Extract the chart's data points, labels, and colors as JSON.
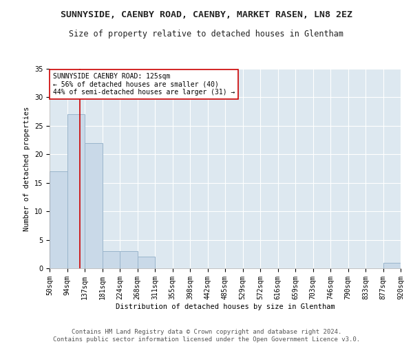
{
  "title": "SUNNYSIDE, CAENBY ROAD, CAENBY, MARKET RASEN, LN8 2EZ",
  "subtitle": "Size of property relative to detached houses in Glentham",
  "xlabel": "Distribution of detached houses by size in Glentham",
  "ylabel": "Number of detached properties",
  "bin_edges": [
    50,
    94,
    137,
    181,
    224,
    268,
    311,
    355,
    398,
    442,
    485,
    529,
    572,
    616,
    659,
    703,
    746,
    790,
    833,
    877,
    920
  ],
  "bar_heights": [
    17,
    27,
    22,
    3,
    3,
    2,
    0,
    0,
    0,
    0,
    0,
    0,
    0,
    0,
    0,
    0,
    0,
    0,
    0,
    1
  ],
  "bar_color": "#c9d9e8",
  "bar_edge_color": "#9ab5cc",
  "red_line_x": 125,
  "red_line_color": "#cc0000",
  "annotation_text": "SUNNYSIDE CAENBY ROAD: 125sqm\n← 56% of detached houses are smaller (40)\n44% of semi-detached houses are larger (31) →",
  "annotation_box_color": "#ffffff",
  "annotation_box_edge": "#cc0000",
  "ylim": [
    0,
    35
  ],
  "yticks": [
    0,
    5,
    10,
    15,
    20,
    25,
    30,
    35
  ],
  "background_color": "#dde8f0",
  "fig_background_color": "#ffffff",
  "grid_color": "#ffffff",
  "footer_line1": "Contains HM Land Registry data © Crown copyright and database right 2024.",
  "footer_line2": "Contains public sector information licensed under the Open Government Licence v3.0.",
  "title_fontsize": 9.5,
  "subtitle_fontsize": 8.5,
  "axis_label_fontsize": 7.5,
  "tick_fontsize": 7,
  "annot_fontsize": 7,
  "footer_fontsize": 6.5
}
